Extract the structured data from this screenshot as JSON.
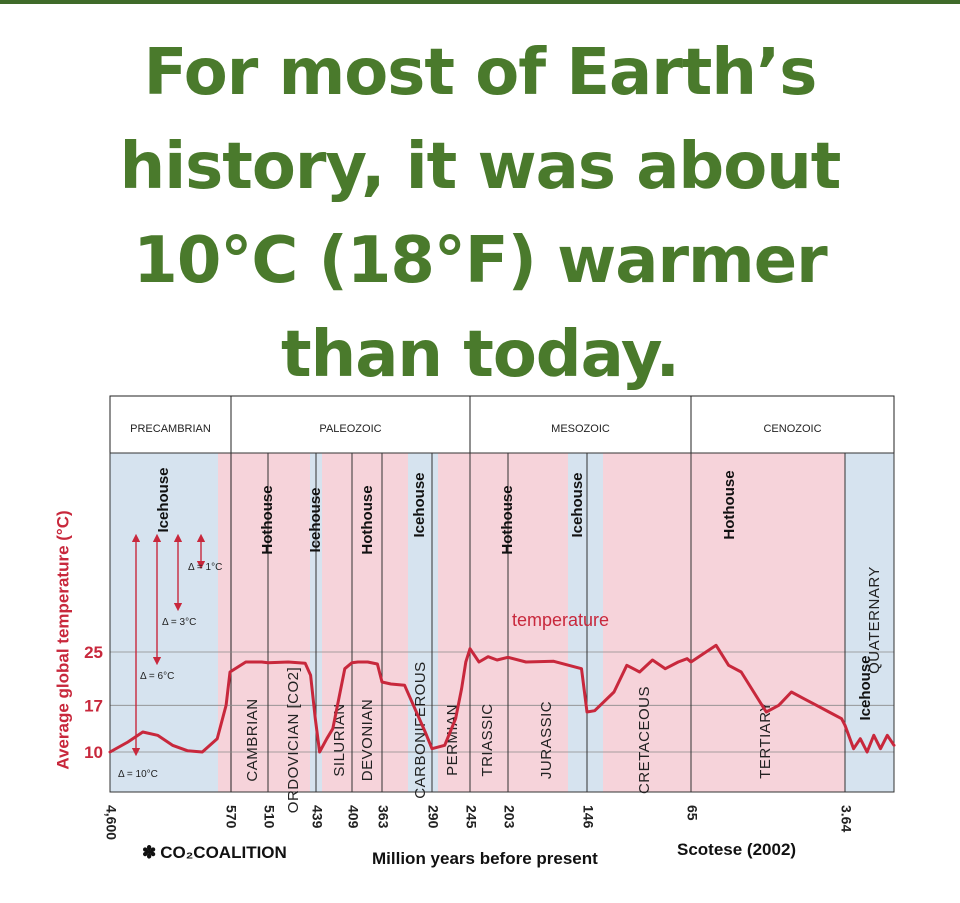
{
  "headline": {
    "line1": "For most of Earth’s",
    "line2": "history, it was about",
    "line3": "10°C (18°F) warmer",
    "line4": "than today."
  },
  "brand": {
    "icon": "tree-icon",
    "text": "CO₂COALITION"
  },
  "source": "Scotese (2002)",
  "colors": {
    "headline": "#4a7a2c",
    "temperature": "#c8283c",
    "hothouse": "#f6d3da",
    "icehouse": "#d6e3ef"
  },
  "chart_data": {
    "type": "line",
    "ylabel": "Average global temperature (°C)",
    "xlabel": "Million years before present",
    "y_ticks": [
      25,
      17,
      10
    ],
    "x_ticks": [
      "4,600",
      "570",
      "510",
      "439",
      "409",
      "363",
      "290",
      "245",
      "203",
      "146",
      "65",
      "3.64"
    ],
    "eras": [
      "PRECAMBRIAN",
      "PALEOZOIC",
      "MESOZOIC",
      "CENOZOIC"
    ],
    "periods": [
      "CAMBRIAN",
      "ORDOVICIAN [CO2]",
      "SILURIAN",
      "DEVONIAN",
      "CARBONIFEROUS",
      "PERMIAN",
      "TRIASSIC",
      "JURASSIC",
      "CRETACEOUS",
      "TERTIARY",
      "QUATERNARY"
    ],
    "states": [
      {
        "label": "Icehouse",
        "type": "ice",
        "from": "4,600",
        "to": "570"
      },
      {
        "label": "Hothouse",
        "type": "hot",
        "from": "570",
        "to": "439"
      },
      {
        "label": "Icehouse",
        "type": "ice",
        "from": "439",
        "to": "439"
      },
      {
        "label": "Hothouse",
        "type": "hot",
        "from": "439",
        "to": "290"
      },
      {
        "label": "Icehouse",
        "type": "ice",
        "from": "290",
        "to": "290"
      },
      {
        "label": "Hothouse",
        "type": "hot",
        "from": "290",
        "to": "146"
      },
      {
        "label": "Icehouse",
        "type": "ice",
        "from": "146",
        "to": "146"
      },
      {
        "label": "Hothouse",
        "type": "hot",
        "from": "146",
        "to": "3.64"
      },
      {
        "label": "Icehouse",
        "type": "ice",
        "from": "3.64",
        "to": "0"
      }
    ],
    "series_label": "temperature",
    "deltas": [
      "Δ = 1°C",
      "Δ = 3°C",
      "Δ = 6°C",
      "Δ = 10°C"
    ],
    "series": [
      {
        "name": "temperature",
        "x": [
          4600,
          4000,
          3500,
          3000,
          2500,
          2000,
          1500,
          1000,
          700,
          570,
          545,
          520,
          510,
          480,
          455,
          447,
          440,
          436,
          430,
          425,
          415,
          409,
          400,
          385,
          370,
          363,
          350,
          330,
          300,
          290,
          275,
          262,
          255,
          250,
          245,
          235,
          225,
          215,
          203,
          190,
          170,
          150,
          146,
          140,
          125,
          115,
          105,
          95,
          85,
          75,
          68,
          65,
          55,
          50,
          45,
          40,
          35,
          30,
          25,
          20,
          15,
          10,
          5,
          3.64,
          3,
          2.5,
          2,
          1.5,
          1,
          0.5,
          0
        ],
        "values": [
          10,
          11.5,
          13,
          12.5,
          11,
          10.2,
          10,
          12,
          17,
          22,
          23.5,
          23.5,
          23.4,
          23.5,
          23.3,
          21.5,
          15,
          10,
          12,
          13.5,
          22.5,
          23.4,
          23.5,
          23.5,
          23.2,
          20.5,
          20.2,
          20,
          13,
          10.5,
          11,
          15,
          19.5,
          23.5,
          25.5,
          23.5,
          24.3,
          23.8,
          24.2,
          23.5,
          23.6,
          22.5,
          16,
          16.2,
          19,
          23,
          22,
          23.8,
          22.5,
          23.5,
          24,
          23.5,
          26,
          23,
          22,
          19,
          16,
          17,
          19,
          18,
          17,
          16,
          15,
          14,
          10.5,
          12,
          10,
          12.5,
          10.5,
          12.5,
          11
        ]
      }
    ],
    "ylim": [
      8,
      32
    ]
  }
}
